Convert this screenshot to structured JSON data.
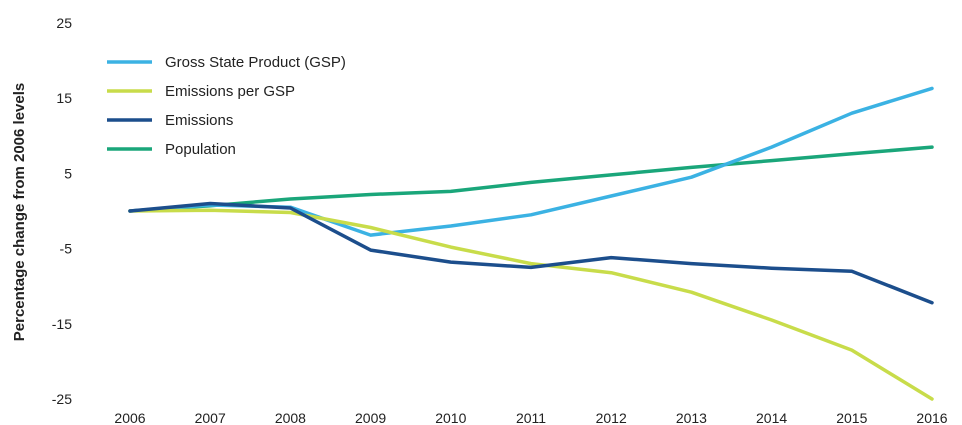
{
  "chart_data": {
    "type": "line",
    "title": "",
    "xlabel": "",
    "ylabel": "Percentage change from 2006 levels",
    "x": [
      "2006",
      "2007",
      "2008",
      "2009",
      "2010",
      "2011",
      "2012",
      "2013",
      "2014",
      "2015",
      "2016"
    ],
    "ylim": [
      -25,
      25
    ],
    "yticks": [
      25,
      15,
      5,
      -5,
      -15,
      -25
    ],
    "grid": false,
    "legend_position": "top-left",
    "series": [
      {
        "name": "Gross State Product (GSP)",
        "color": "#3bb2e3",
        "values": [
          0,
          0.8,
          0.5,
          -3.2,
          -2,
          -0.5,
          2,
          4.5,
          8.5,
          13,
          16.3
        ]
      },
      {
        "name": "Emissions per GSP",
        "color": "#c8dc4a",
        "values": [
          0,
          0.1,
          -0.2,
          -2.2,
          -4.8,
          -7,
          -8.2,
          -10.8,
          -14.5,
          -18.5,
          -25
        ]
      },
      {
        "name": "Emissions",
        "color": "#1c4e8c",
        "values": [
          0,
          1,
          0.4,
          -5.2,
          -6.8,
          -7.5,
          -6.2,
          -7,
          -7.6,
          -8,
          -12.2
        ]
      },
      {
        "name": "Population",
        "color": "#1aa67a",
        "values": [
          0,
          0.7,
          1.6,
          2.2,
          2.6,
          3.8,
          4.8,
          5.8,
          6.7,
          7.6,
          8.5
        ]
      }
    ]
  }
}
